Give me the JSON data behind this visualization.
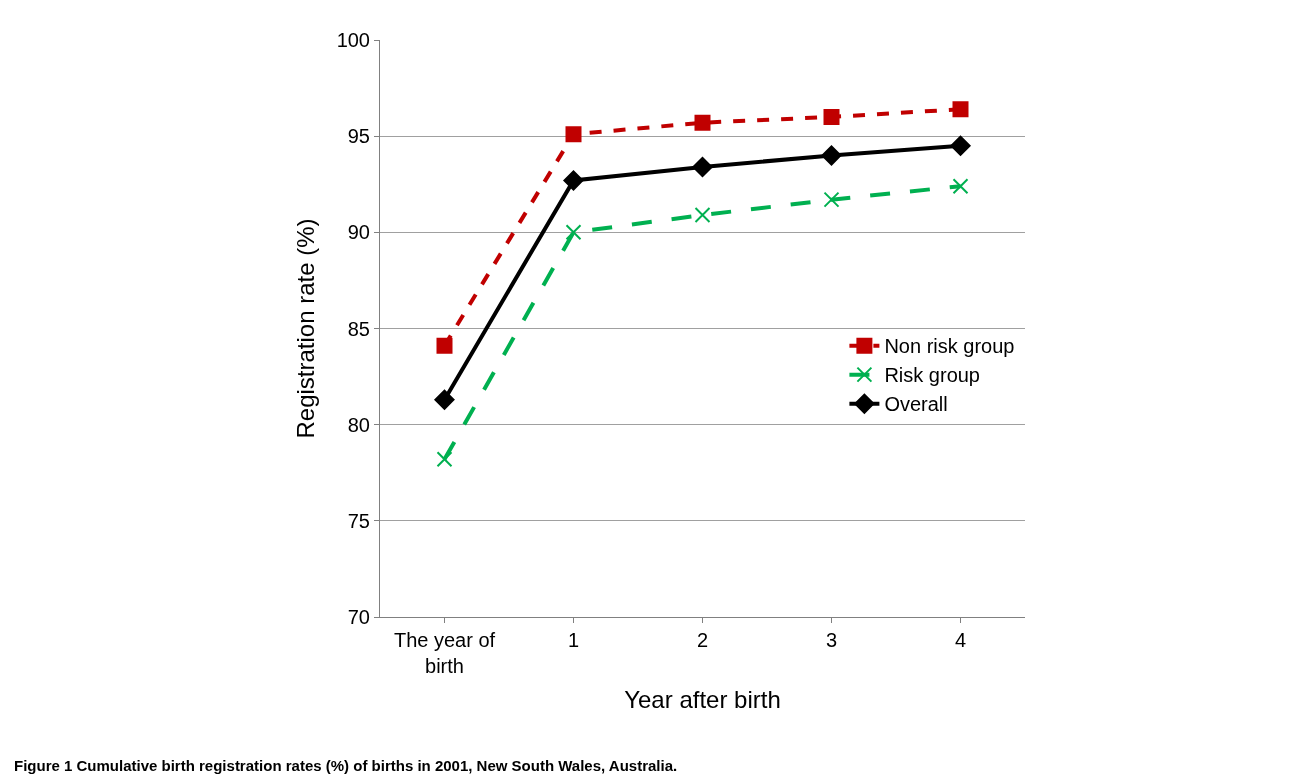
{
  "chart_data": {
    "type": "line",
    "xlabel": "Year after birth",
    "ylabel": "Registration rate (%)",
    "categories": [
      "The year of birth",
      "1",
      "2",
      "3",
      "4"
    ],
    "series": [
      {
        "name": "Non risk group",
        "color": "#c00000",
        "values": [
          84.1,
          95.1,
          95.7,
          96.0,
          96.4
        ],
        "marker": "square",
        "line_style": "dashed"
      },
      {
        "name": "Risk group",
        "color": "#00b050",
        "values": [
          78.2,
          90.0,
          90.9,
          91.7,
          92.4
        ],
        "marker": "cross",
        "line_style": "longdash"
      },
      {
        "name": "Overall",
        "color": "#000000",
        "values": [
          81.3,
          92.7,
          93.4,
          94.0,
          94.5
        ],
        "marker": "diamond",
        "line_style": "solid"
      }
    ],
    "ylim": [
      70,
      100
    ],
    "yticks": [
      70,
      75,
      80,
      85,
      90,
      95,
      100
    ],
    "grid": "y",
    "legend": "right",
    "annotations": [
      "Figure 1 Cumulative birth registration rates (%) of births in 2001, New South Wales, Australia."
    ]
  }
}
